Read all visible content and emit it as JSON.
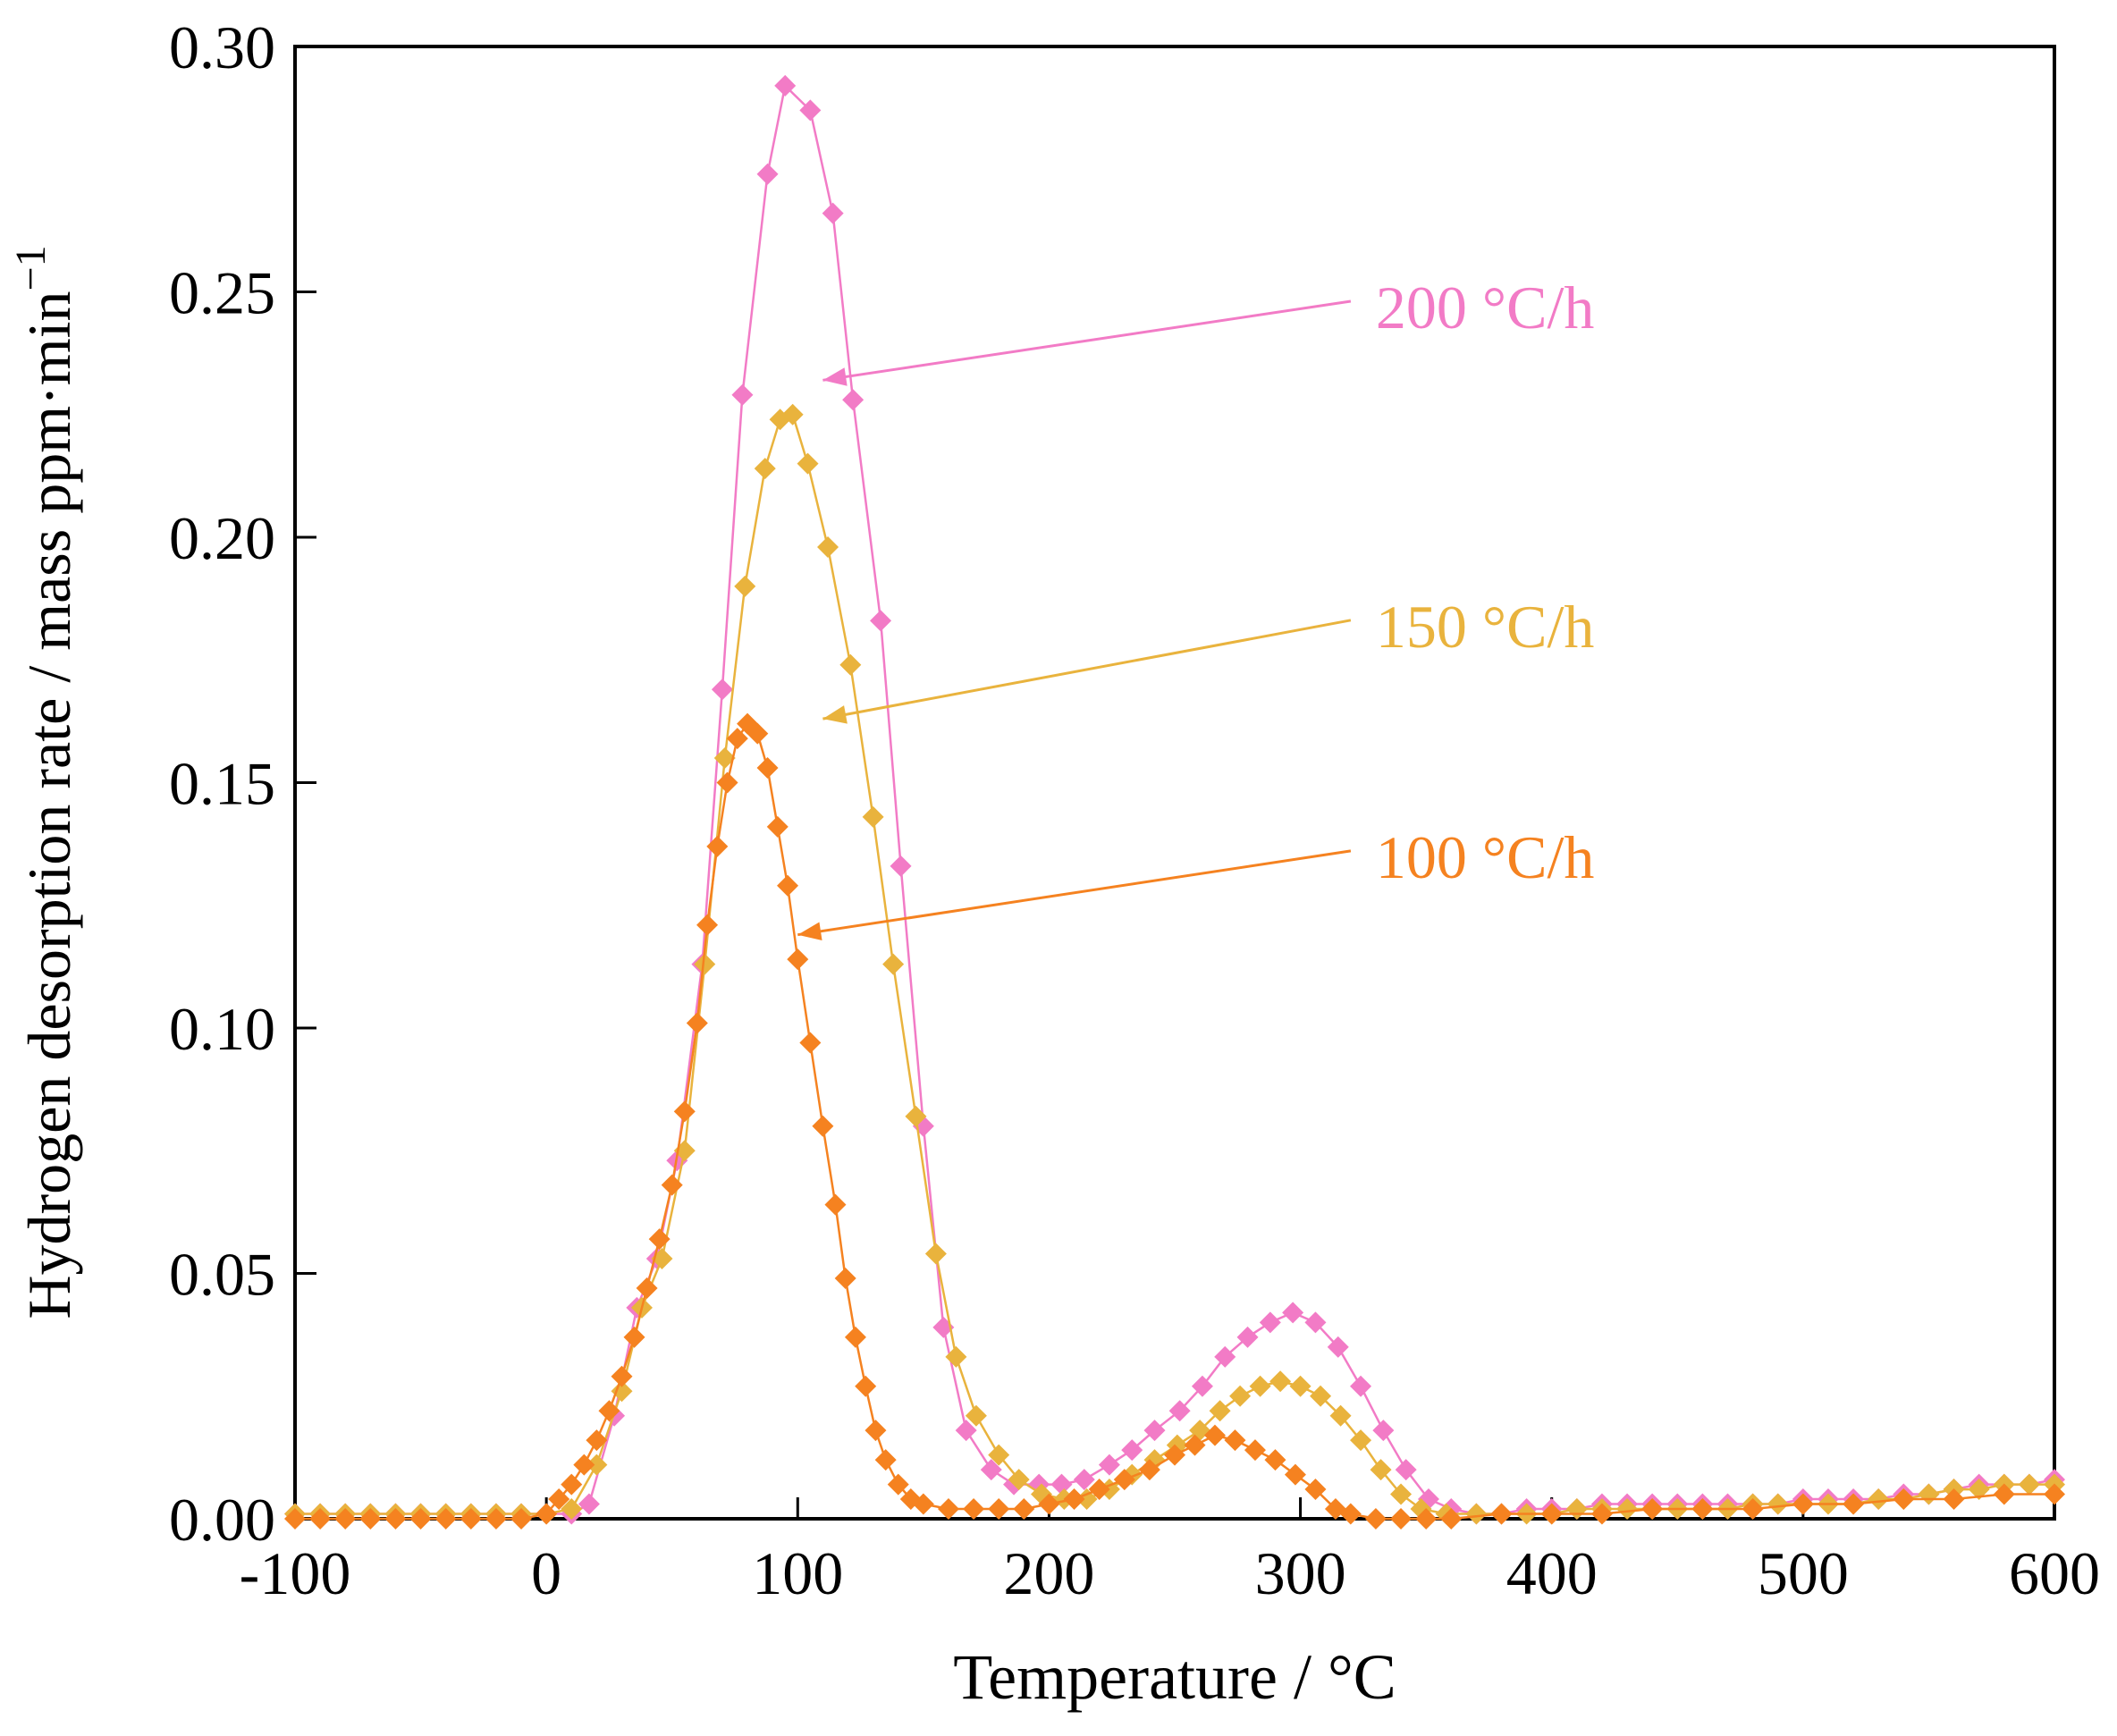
{
  "chart_data": {
    "type": "line",
    "title": "",
    "xlabel": "Temperature / °C",
    "ylabel": "Hydrogen desorption rate / mass ppm·min",
    "ylabel_superscript": "−1",
    "xlim": [
      -100,
      600
    ],
    "ylim": [
      0,
      0.3
    ],
    "xticks": [
      "-100",
      "0",
      "100",
      "200",
      "300",
      "400",
      "500",
      "600"
    ],
    "yticks": [
      "0.00",
      "0.05",
      "0.10",
      "0.15",
      "0.20",
      "0.25",
      "0.30"
    ],
    "grid": false,
    "series": [
      {
        "name": "200 °C/h",
        "color": "#f27bc6",
        "marker": "diamond",
        "label_at": [
          330,
          0.247
        ],
        "arrow_to": [
          110,
          0.232
        ],
        "points": [
          [
            -100,
            0.001
          ],
          [
            -90,
            0.001
          ],
          [
            -80,
            0.001
          ],
          [
            -70,
            0.001
          ],
          [
            -60,
            0.001
          ],
          [
            -50,
            0.001
          ],
          [
            -40,
            0.001
          ],
          [
            -30,
            0.001
          ],
          [
            -20,
            0.001
          ],
          [
            -10,
            0.001
          ],
          [
            0,
            0.001
          ],
          [
            10,
            0.001
          ],
          [
            17,
            0.003
          ],
          [
            27,
            0.021
          ],
          [
            36,
            0.043
          ],
          [
            44,
            0.053
          ],
          [
            52,
            0.073
          ],
          [
            62,
            0.113
          ],
          [
            70,
            0.169
          ],
          [
            78,
            0.229
          ],
          [
            88,
            0.274
          ],
          [
            95,
            0.292
          ],
          [
            105,
            0.287
          ],
          [
            114,
            0.266
          ],
          [
            122,
            0.228
          ],
          [
            133,
            0.183
          ],
          [
            141,
            0.133
          ],
          [
            150,
            0.08
          ],
          [
            158,
            0.039
          ],
          [
            167,
            0.018
          ],
          [
            177,
            0.01
          ],
          [
            186,
            0.007
          ],
          [
            196,
            0.007
          ],
          [
            205,
            0.007
          ],
          [
            214,
            0.008
          ],
          [
            224,
            0.011
          ],
          [
            233,
            0.014
          ],
          [
            242,
            0.018
          ],
          [
            252,
            0.022
          ],
          [
            261,
            0.027
          ],
          [
            270,
            0.033
          ],
          [
            279,
            0.037
          ],
          [
            288,
            0.04
          ],
          [
            297,
            0.042
          ],
          [
            306,
            0.04
          ],
          [
            315,
            0.035
          ],
          [
            324,
            0.027
          ],
          [
            333,
            0.018
          ],
          [
            342,
            0.01
          ],
          [
            351,
            0.004
          ],
          [
            360,
            0.002
          ],
          [
            370,
            0.001
          ],
          [
            380,
            0.001
          ],
          [
            390,
            0.002
          ],
          [
            400,
            0.002
          ],
          [
            410,
            0.002
          ],
          [
            420,
            0.003
          ],
          [
            430,
            0.003
          ],
          [
            440,
            0.003
          ],
          [
            450,
            0.003
          ],
          [
            460,
            0.003
          ],
          [
            470,
            0.003
          ],
          [
            480,
            0.003
          ],
          [
            490,
            0.003
          ],
          [
            500,
            0.004
          ],
          [
            510,
            0.004
          ],
          [
            520,
            0.004
          ],
          [
            530,
            0.004
          ],
          [
            540,
            0.005
          ],
          [
            550,
            0.005
          ],
          [
            560,
            0.006
          ],
          [
            570,
            0.007
          ],
          [
            580,
            0.007
          ],
          [
            590,
            0.007
          ],
          [
            600,
            0.008
          ]
        ]
      },
      {
        "name": "150 °C/h",
        "color": "#e9b33d",
        "marker": "diamond",
        "label_at": [
          330,
          0.182
        ],
        "arrow_to": [
          110,
          0.163
        ],
        "points": [
          [
            -100,
            0.001
          ],
          [
            -90,
            0.001
          ],
          [
            -80,
            0.001
          ],
          [
            -70,
            0.001
          ],
          [
            -60,
            0.001
          ],
          [
            -50,
            0.001
          ],
          [
            -40,
            0.001
          ],
          [
            -30,
            0.001
          ],
          [
            -20,
            0.001
          ],
          [
            -10,
            0.001
          ],
          [
            0,
            0.001
          ],
          [
            10,
            0.002
          ],
          [
            20,
            0.011
          ],
          [
            30,
            0.026
          ],
          [
            38,
            0.043
          ],
          [
            46,
            0.053
          ],
          [
            55,
            0.075
          ],
          [
            63,
            0.113
          ],
          [
            71,
            0.155
          ],
          [
            79,
            0.19
          ],
          [
            87,
            0.214
          ],
          [
            93,
            0.224
          ],
          [
            98,
            0.225
          ],
          [
            104,
            0.215
          ],
          [
            112,
            0.198
          ],
          [
            121,
            0.174
          ],
          [
            130,
            0.143
          ],
          [
            138,
            0.113
          ],
          [
            147,
            0.082
          ],
          [
            155,
            0.054
          ],
          [
            163,
            0.033
          ],
          [
            171,
            0.021
          ],
          [
            180,
            0.013
          ],
          [
            188,
            0.008
          ],
          [
            197,
            0.005
          ],
          [
            206,
            0.004
          ],
          [
            215,
            0.004
          ],
          [
            224,
            0.006
          ],
          [
            233,
            0.009
          ],
          [
            242,
            0.012
          ],
          [
            251,
            0.015
          ],
          [
            260,
            0.018
          ],
          [
            268,
            0.022
          ],
          [
            276,
            0.025
          ],
          [
            284,
            0.027
          ],
          [
            292,
            0.028
          ],
          [
            300,
            0.027
          ],
          [
            308,
            0.025
          ],
          [
            316,
            0.021
          ],
          [
            324,
            0.016
          ],
          [
            332,
            0.01
          ],
          [
            340,
            0.005
          ],
          [
            348,
            0.002
          ],
          [
            358,
            0.001
          ],
          [
            370,
            0.001
          ],
          [
            380,
            0.001
          ],
          [
            390,
            0.001
          ],
          [
            400,
            0.001
          ],
          [
            410,
            0.002
          ],
          [
            420,
            0.002
          ],
          [
            430,
            0.002
          ],
          [
            440,
            0.002
          ],
          [
            450,
            0.002
          ],
          [
            460,
            0.002
          ],
          [
            470,
            0.002
          ],
          [
            480,
            0.003
          ],
          [
            490,
            0.003
          ],
          [
            500,
            0.003
          ],
          [
            510,
            0.003
          ],
          [
            520,
            0.003
          ],
          [
            530,
            0.004
          ],
          [
            540,
            0.004
          ],
          [
            550,
            0.005
          ],
          [
            560,
            0.006
          ],
          [
            570,
            0.006
          ],
          [
            580,
            0.007
          ],
          [
            590,
            0.007
          ],
          [
            600,
            0.007
          ]
        ]
      },
      {
        "name": "100 °C/h",
        "color": "#f58220",
        "marker": "diamond",
        "label_at": [
          330,
          0.135
        ],
        "arrow_to": [
          100,
          0.119
        ],
        "points": [
          [
            -100,
            0.0
          ],
          [
            -90,
            0.0
          ],
          [
            -80,
            0.0
          ],
          [
            -70,
            0.0
          ],
          [
            -60,
            0.0
          ],
          [
            -50,
            0.0
          ],
          [
            -40,
            0.0
          ],
          [
            -30,
            0.0
          ],
          [
            -20,
            0.0
          ],
          [
            -10,
            0.0
          ],
          [
            0,
            0.001
          ],
          [
            5,
            0.004
          ],
          [
            10,
            0.007
          ],
          [
            15,
            0.011
          ],
          [
            20,
            0.016
          ],
          [
            25,
            0.022
          ],
          [
            30,
            0.029
          ],
          [
            35,
            0.037
          ],
          [
            40,
            0.047
          ],
          [
            45,
            0.057
          ],
          [
            50,
            0.068
          ],
          [
            55,
            0.083
          ],
          [
            60,
            0.101
          ],
          [
            64,
            0.121
          ],
          [
            68,
            0.137
          ],
          [
            72,
            0.15
          ],
          [
            76,
            0.159
          ],
          [
            80,
            0.162
          ],
          [
            84,
            0.16
          ],
          [
            88,
            0.153
          ],
          [
            92,
            0.141
          ],
          [
            96,
            0.129
          ],
          [
            100,
            0.114
          ],
          [
            105,
            0.097
          ],
          [
            110,
            0.08
          ],
          [
            115,
            0.064
          ],
          [
            119,
            0.049
          ],
          [
            123,
            0.037
          ],
          [
            127,
            0.027
          ],
          [
            131,
            0.018
          ],
          [
            135,
            0.012
          ],
          [
            140,
            0.007
          ],
          [
            145,
            0.004
          ],
          [
            150,
            0.003
          ],
          [
            160,
            0.002
          ],
          [
            170,
            0.002
          ],
          [
            180,
            0.002
          ],
          [
            190,
            0.002
          ],
          [
            200,
            0.003
          ],
          [
            210,
            0.004
          ],
          [
            220,
            0.006
          ],
          [
            230,
            0.008
          ],
          [
            240,
            0.01
          ],
          [
            250,
            0.013
          ],
          [
            258,
            0.015
          ],
          [
            266,
            0.017
          ],
          [
            274,
            0.016
          ],
          [
            282,
            0.014
          ],
          [
            290,
            0.012
          ],
          [
            298,
            0.009
          ],
          [
            306,
            0.006
          ],
          [
            314,
            0.002
          ],
          [
            320,
            0.001
          ],
          [
            330,
            0.0
          ],
          [
            340,
            0.0
          ],
          [
            350,
            0.0
          ],
          [
            360,
            0.0
          ],
          [
            380,
            0.001
          ],
          [
            400,
            0.001
          ],
          [
            420,
            0.001
          ],
          [
            440,
            0.002
          ],
          [
            460,
            0.002
          ],
          [
            480,
            0.002
          ],
          [
            500,
            0.003
          ],
          [
            520,
            0.003
          ],
          [
            540,
            0.004
          ],
          [
            560,
            0.004
          ],
          [
            580,
            0.005
          ],
          [
            600,
            0.005
          ]
        ]
      }
    ]
  }
}
